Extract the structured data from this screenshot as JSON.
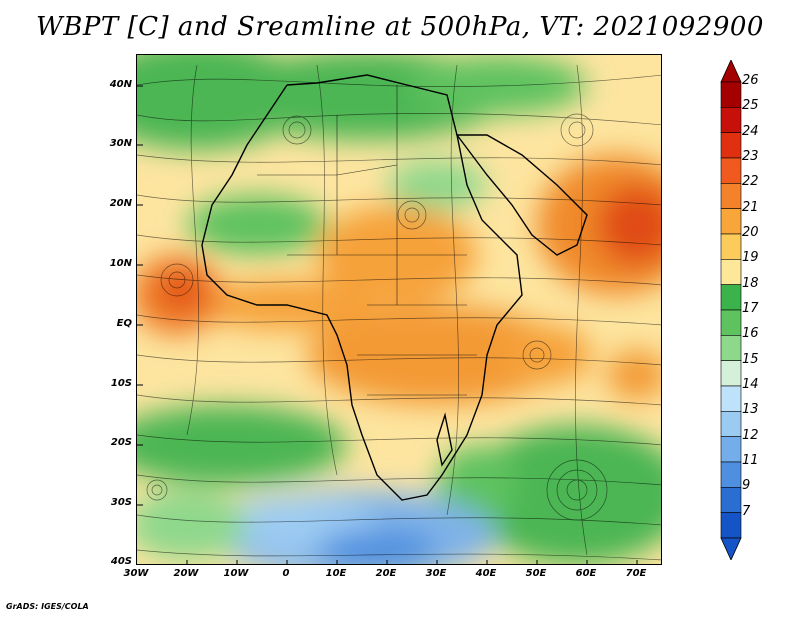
{
  "title": "WBPT [C] and Sreamline at 500hPa, VT: 2021092900",
  "credit": "GrADS: IGES/COLA",
  "lat_labels": [
    "40N",
    "30N",
    "20N",
    "10N",
    "EQ",
    "10S",
    "20S",
    "30S",
    "40S"
  ],
  "lon_labels": [
    "30W",
    "20W",
    "10W",
    "0",
    "10E",
    "20E",
    "30E",
    "40E",
    "50E",
    "60E",
    "70E"
  ],
  "colorbar": {
    "labels": [
      "26",
      "25",
      "24",
      "23",
      "22",
      "21",
      "20",
      "19",
      "18",
      "17",
      "16",
      "15",
      "14",
      "13",
      "12",
      "11",
      "9",
      "7"
    ],
    "colors": [
      "#a50000",
      "#c8100a",
      "#e03010",
      "#f05a1e",
      "#f4822a",
      "#f8a63a",
      "#fbcc5c",
      "#fde89a",
      "#3cb24a",
      "#5ec25e",
      "#8ed88c",
      "#d4f0d8",
      "#bfe2fb",
      "#9ccbf2",
      "#74aeea",
      "#4e8fdf",
      "#2a6ed2",
      "#1554c6"
    ]
  }
}
